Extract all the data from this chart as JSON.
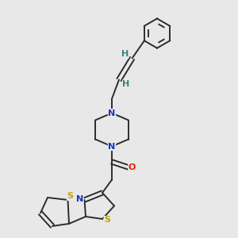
{
  "bg_color": "#e8e8e8",
  "bond_color": "#2c2c2c",
  "n_color": "#1a35cc",
  "s_color": "#c8a000",
  "o_color": "#dd2200",
  "h_color": "#3a8080",
  "figsize": [
    3.0,
    3.0
  ],
  "dpi": 100,
  "lw": 1.4,
  "fs": 8.0,
  "xlim": [
    0,
    10
  ],
  "ylim": [
    0,
    10
  ]
}
